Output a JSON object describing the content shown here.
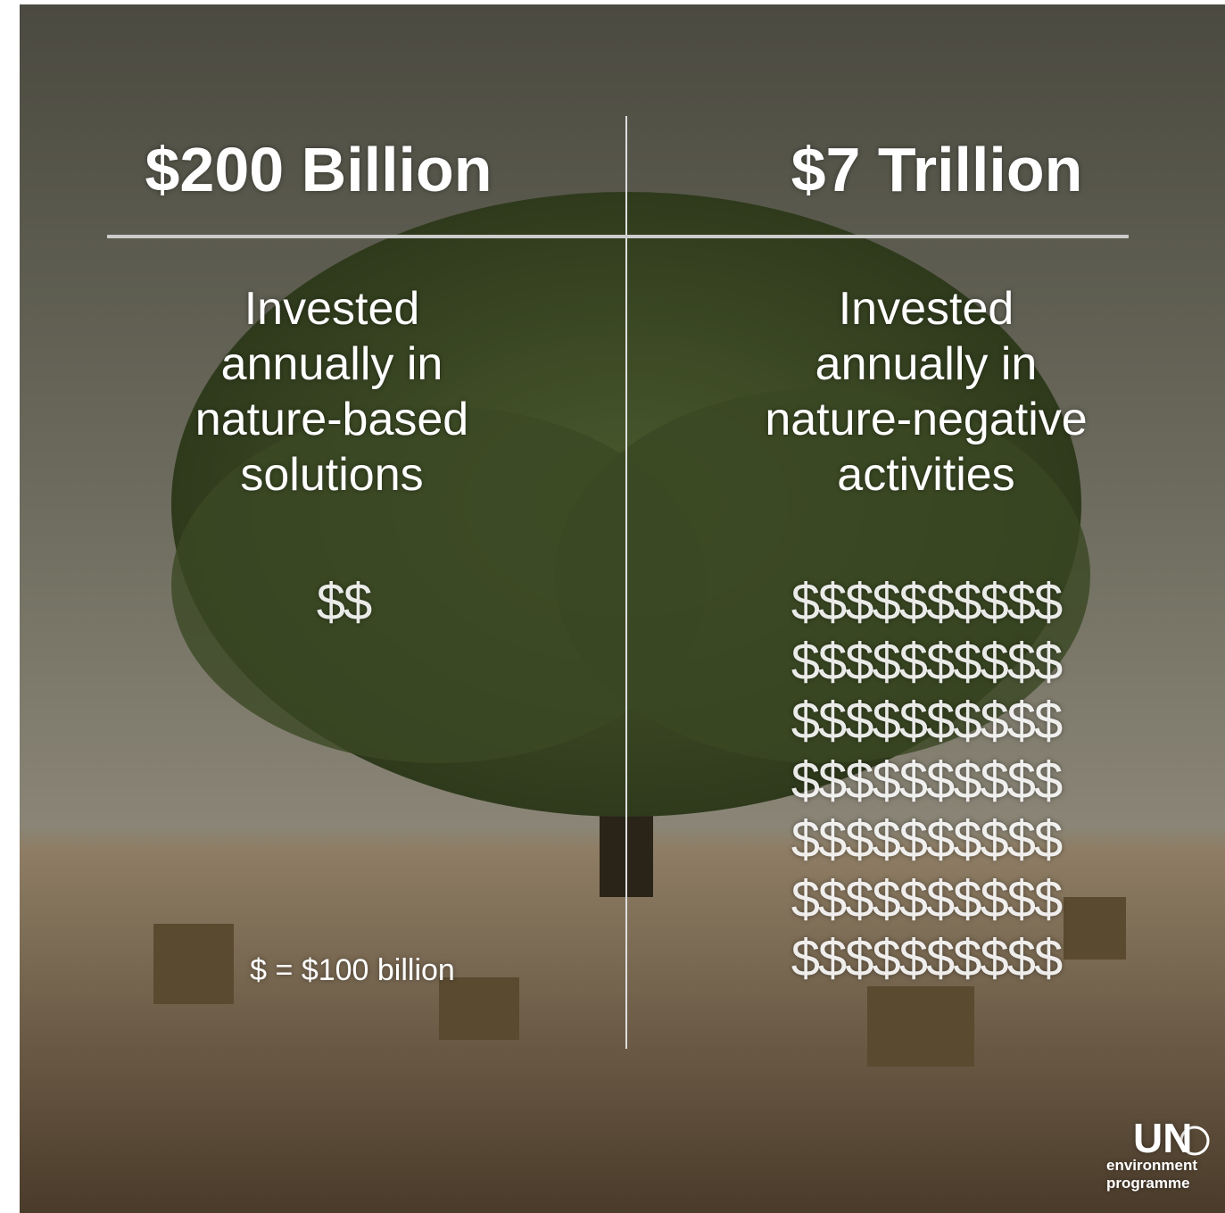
{
  "left": {
    "heading": "$200 Billion",
    "lines": [
      "Invested",
      "annually in",
      "nature-based",
      "solutions"
    ],
    "icons": [
      "$$"
    ]
  },
  "right": {
    "heading": "$7 Trillion",
    "lines": [
      "Invested",
      "annually in",
      "nature-negative",
      "activities"
    ],
    "icons": [
      "$$$$$$$$$$",
      "$$$$$$$$$$",
      "$$$$$$$$$$",
      "$$$$$$$$$$",
      "$$$$$$$$$$",
      "$$$$$$$$$$",
      "$$$$$$$$$$"
    ]
  },
  "legend": "$ = $100 billion",
  "logo": {
    "mark": "UN",
    "lines": [
      "environment",
      "programme"
    ]
  }
}
